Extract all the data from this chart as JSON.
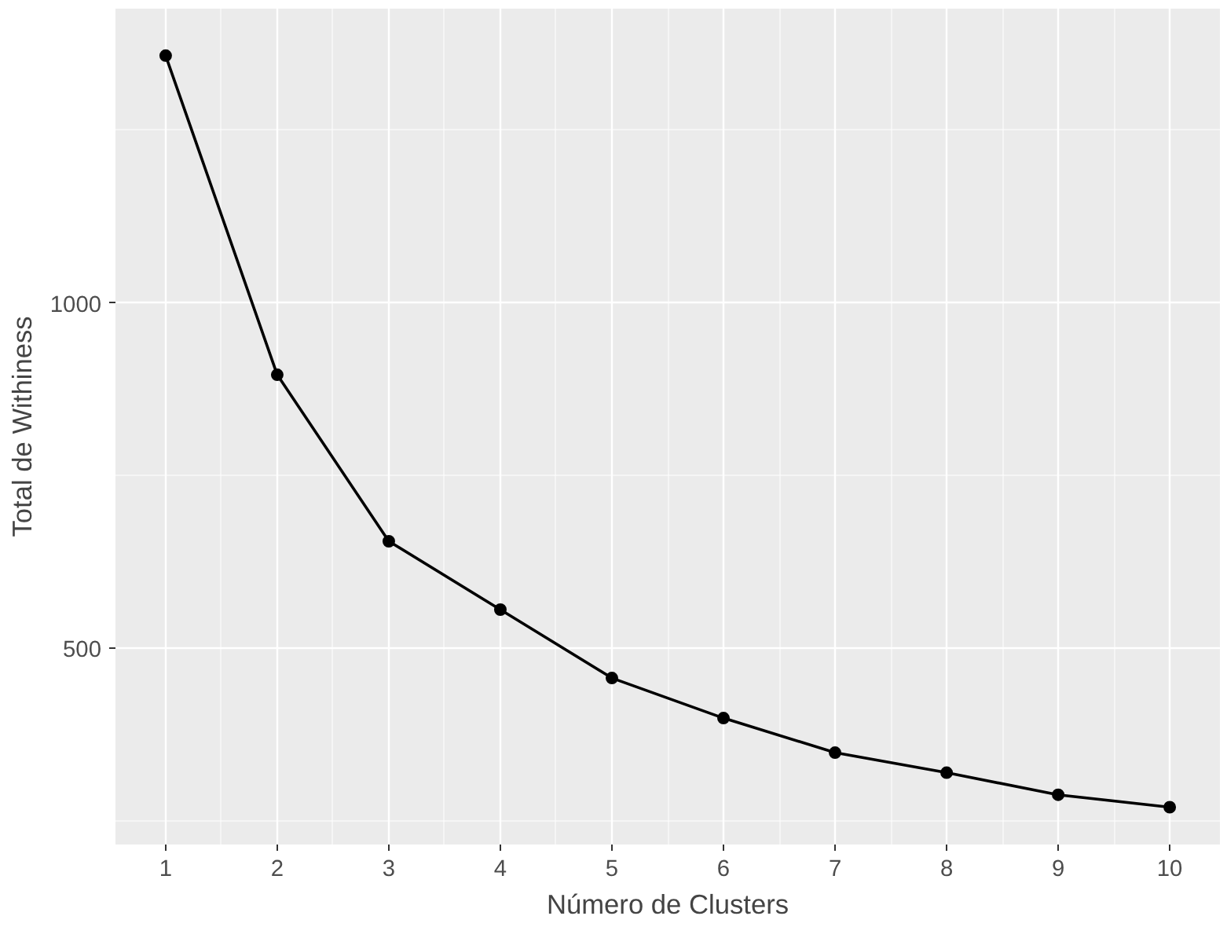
{
  "chart_data": {
    "type": "line",
    "xlabel": "Número de Clusters",
    "ylabel": "Total de Withiness",
    "x": [
      1,
      2,
      3,
      4,
      5,
      6,
      7,
      8,
      9,
      10
    ],
    "series": [
      {
        "color": "#000000",
        "values": [
          1358,
          896,
          655,
          556,
          457,
          399,
          349,
          320,
          288,
          270
        ]
      }
    ],
    "xlim": [
      0.55,
      10.45
    ],
    "ylim": [
      216,
      1426
    ],
    "xticks": [
      1,
      2,
      3,
      4,
      5,
      6,
      7,
      8,
      9,
      10
    ],
    "yticks": [
      500,
      1000
    ],
    "grid": true,
    "marker": "circle",
    "line_style": "solid"
  }
}
